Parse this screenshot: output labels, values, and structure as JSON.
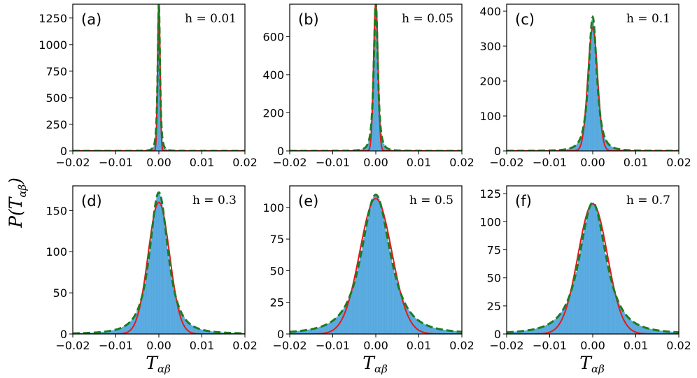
{
  "figure": {
    "y_title_main": "P(T",
    "y_title_sub": "αβ",
    "y_title_close": ")",
    "x_title_main": "T",
    "x_title_sub": "αβ"
  },
  "colors": {
    "histogram": "#5DADE2",
    "histogram_edge": "#4A9FD8",
    "gaussian_fit": "#E41A1C",
    "heavy_tail_fit": "#1E7B1E"
  },
  "chart_data": [
    {
      "type": "bar",
      "panel": "(a)",
      "h_label": "h = 0.01",
      "h": 0.01,
      "xlim": [
        -0.02,
        0.02
      ],
      "ylim": [
        0,
        1380
      ],
      "xticks": [
        -0.02,
        -0.01,
        0.0,
        0.01,
        0.02
      ],
      "xtick_labels": [
        "−0.02",
        "−0.01",
        "0.00",
        "0.01",
        "0.02"
      ],
      "yticks": [
        0,
        250,
        500,
        750,
        1000,
        1250
      ],
      "ytick_labels": [
        "0",
        "250",
        "500",
        "750",
        "1000",
        "1250"
      ],
      "peak": 1400,
      "gauss_sigma": 0.000285,
      "gauss_peak": 1400,
      "tail_scale": 0.000285,
      "tail_peak": 1400
    },
    {
      "type": "bar",
      "panel": "(b)",
      "h_label": "h = 0.05",
      "h": 0.05,
      "xlim": [
        -0.02,
        0.02
      ],
      "ylim": [
        0,
        770
      ],
      "xticks": [
        -0.02,
        -0.01,
        0.0,
        0.01,
        0.02
      ],
      "xtick_labels": [
        "−0.02",
        "−0.01",
        "0.00",
        "0.01",
        "0.02"
      ],
      "yticks": [
        0,
        200,
        400,
        600
      ],
      "ytick_labels": [
        "0",
        "200",
        "400",
        "600"
      ],
      "peak": 780,
      "gauss_sigma": 0.00051,
      "gauss_peak": 780,
      "tail_scale": 0.00051,
      "tail_peak": 780
    },
    {
      "type": "bar",
      "panel": "(c)",
      "h_label": "h = 0.1",
      "h": 0.1,
      "xlim": [
        -0.02,
        0.02
      ],
      "ylim": [
        0,
        420
      ],
      "xticks": [
        -0.02,
        -0.01,
        0.0,
        0.01,
        0.02
      ],
      "xtick_labels": [
        "−0.02",
        "−0.01",
        "0.00",
        "0.01",
        "0.02"
      ],
      "yticks": [
        0,
        100,
        200,
        300,
        400
      ],
      "ytick_labels": [
        "0",
        "100",
        "200",
        "300",
        "400"
      ],
      "peak": 380,
      "gauss_sigma": 0.00113,
      "gauss_peak": 353,
      "tail_scale": 0.00104,
      "tail_peak": 383
    },
    {
      "type": "bar",
      "panel": "(d)",
      "h_label": "h = 0.3",
      "h": 0.3,
      "xlim": [
        -0.02,
        0.02
      ],
      "ylim": [
        0,
        180
      ],
      "xticks": [
        -0.02,
        -0.01,
        0.0,
        0.01,
        0.02
      ],
      "xtick_labels": [
        "−0.02",
        "−0.01",
        "0.00",
        "0.01",
        "0.02"
      ],
      "yticks": [
        0,
        50,
        100,
        150
      ],
      "ytick_labels": [
        "0",
        "50",
        "100",
        "150"
      ],
      "peak": 172,
      "gauss_sigma": 0.00249,
      "gauss_peak": 160,
      "tail_scale": 0.00232,
      "tail_peak": 172
    },
    {
      "type": "bar",
      "panel": "(e)",
      "h_label": "h = 0.5",
      "h": 0.5,
      "xlim": [
        -0.02,
        0.02
      ],
      "ylim": [
        0,
        117
      ],
      "xticks": [
        -0.02,
        -0.01,
        0.0,
        0.01,
        0.02
      ],
      "xtick_labels": [
        "−0.02",
        "−0.01",
        "0.00",
        "0.01",
        "0.02"
      ],
      "yticks": [
        0,
        25,
        50,
        75,
        100
      ],
      "ytick_labels": [
        "0",
        "25",
        "50",
        "75",
        "100"
      ],
      "peak": 110,
      "gauss_sigma": 0.00373,
      "gauss_peak": 107,
      "tail_scale": 0.00363,
      "tail_peak": 110
    },
    {
      "type": "bar",
      "panel": "(f)",
      "h_label": "h = 0.7",
      "h": 0.7,
      "xlim": [
        -0.02,
        0.02
      ],
      "ylim": [
        0,
        132
      ],
      "xticks": [
        -0.02,
        -0.01,
        0.0,
        0.01,
        0.02
      ],
      "xtick_labels": [
        "−0.02",
        "−0.01",
        "0.00",
        "0.01",
        "0.02"
      ],
      "yticks": [
        0,
        25,
        50,
        75,
        100,
        125
      ],
      "ytick_labels": [
        "0",
        "25",
        "50",
        "75",
        "100",
        "125"
      ],
      "peak": 117,
      "gauss_sigma": 0.00342,
      "gauss_peak": 116,
      "tail_scale": 0.00338,
      "tail_peak": 117
    }
  ]
}
